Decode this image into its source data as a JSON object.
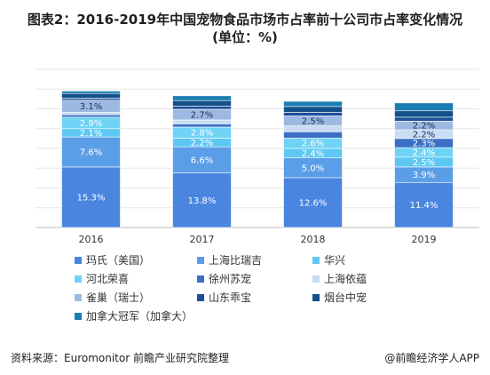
{
  "header": {
    "title_line1": "图表2：2016-2019年中国宠物食品市场市占率前十公司市占率变化情况",
    "title_line2": "(单位：%)"
  },
  "footer": {
    "source": "资料来源：Euromonitor 前瞻产业研究院整理",
    "credit": "@前瞻经济学人APP"
  },
  "chart_data": {
    "type": "bar",
    "stacked": true,
    "categories": [
      "2016",
      "2017",
      "2018",
      "2019"
    ],
    "ylim": [
      0,
      40
    ],
    "grid": true,
    "legend_position": "bottom",
    "series": [
      {
        "name": "玛氏（美国）",
        "color": "#4a86e0",
        "values": [
          15.3,
          13.8,
          12.6,
          11.4
        ],
        "labels": [
          "15.3%",
          "13.8%",
          "12.6%",
          "11.4%"
        ]
      },
      {
        "name": "上海比瑞吉",
        "color": "#5b9ee8",
        "values": [
          7.6,
          6.6,
          5.0,
          3.9
        ],
        "labels": [
          "7.6%",
          "6.6%",
          "5.0%",
          "3.9%"
        ]
      },
      {
        "name": "华兴",
        "color": "#5ec8f2",
        "values": [
          2.1,
          2.2,
          2.4,
          2.5
        ],
        "labels": [
          "2.1%",
          "2.2%",
          "2.4%",
          "2.5%"
        ]
      },
      {
        "name": "河北荣喜",
        "color": "#6fd3f5",
        "values": [
          2.9,
          2.8,
          2.6,
          2.4
        ],
        "labels": [
          "2.9%",
          "2.8%",
          "2.6%",
          "2.4%"
        ]
      },
      {
        "name": "徐州苏宠",
        "color": "#3a6fc4",
        "values": [
          0.6,
          0.8,
          1.6,
          2.3
        ],
        "labels": [
          "",
          "",
          "",
          "2.3%"
        ]
      },
      {
        "name": "上海依蕴",
        "color": "#c9dcf4",
        "values": [
          0.6,
          1.0,
          1.5,
          2.2
        ],
        "labels": [
          "",
          "",
          "",
          "2.2%"
        ]
      },
      {
        "name": "雀巢（瑞士）",
        "color": "#9db9e2",
        "values": [
          3.1,
          2.7,
          2.5,
          2.2
        ],
        "labels": [
          "3.1%",
          "2.7%",
          "2.5%",
          "2.2%"
        ]
      },
      {
        "name": "山东乖宝",
        "color": "#1d4f9c",
        "values": [
          0.5,
          0.8,
          0.9,
          1.0
        ],
        "labels": [
          "",
          "",
          "",
          ""
        ]
      },
      {
        "name": "烟台中宠",
        "color": "#14518a",
        "values": [
          1.2,
          1.4,
          1.5,
          1.6
        ],
        "labels": [
          "",
          "",
          "",
          ""
        ]
      },
      {
        "name": "加拿大冠军（加拿大）",
        "color": "#1a7db0",
        "values": [
          0.6,
          1.2,
          1.3,
          2.0
        ],
        "labels": [
          "",
          "",
          "",
          ""
        ]
      }
    ]
  }
}
